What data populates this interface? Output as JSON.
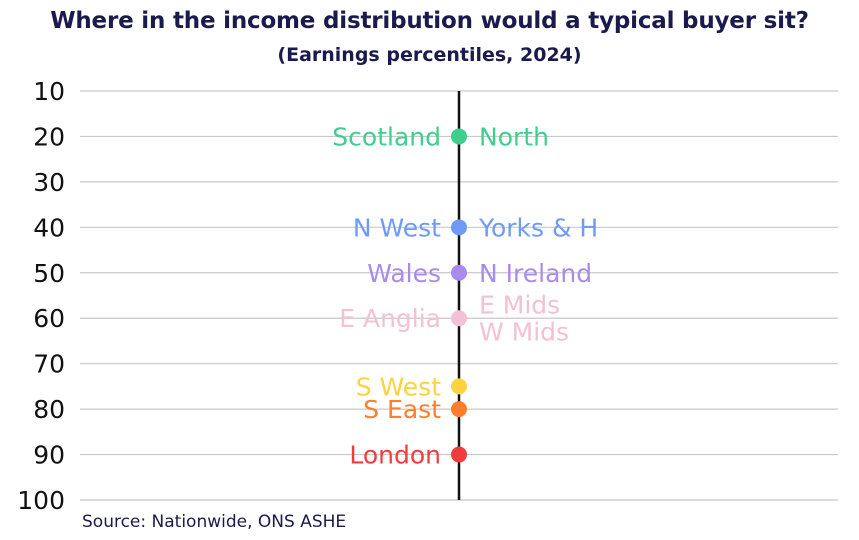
{
  "chart_data": {
    "type": "scatter",
    "title": "Where in the income distribution would a typical buyer sit?",
    "subtitle": "(Earnings percentiles, 2024)",
    "source": "Source: Nationwide, ONS ASHE",
    "ylim": [
      10,
      100
    ],
    "y_ticks": [
      10,
      20,
      30,
      40,
      50,
      60,
      70,
      80,
      90,
      100
    ],
    "y_reversed": true,
    "grid": true,
    "points": [
      {
        "value": 20,
        "color": "#3ecf8e",
        "left_labels": [
          "Scotland"
        ],
        "right_labels": [
          "North"
        ]
      },
      {
        "value": 40,
        "color": "#6e9bf5",
        "left_labels": [
          "N West"
        ],
        "right_labels": [
          "Yorks & H"
        ]
      },
      {
        "value": 50,
        "color": "#a98bee",
        "left_labels": [
          "Wales"
        ],
        "right_labels": [
          "N Ireland"
        ]
      },
      {
        "value": 60,
        "color": "#f3c0d6",
        "left_labels": [
          "E Anglia"
        ],
        "right_labels": [
          "E Mids",
          "W Mids"
        ]
      },
      {
        "value": 75,
        "color": "#ffd23f",
        "left_labels": [
          "S West"
        ],
        "right_labels": []
      },
      {
        "value": 80,
        "color": "#ff7e2a",
        "left_labels": [
          "S East"
        ],
        "right_labels": []
      },
      {
        "value": 90,
        "color": "#f03c3c",
        "left_labels": [
          "London"
        ],
        "right_labels": []
      }
    ]
  }
}
